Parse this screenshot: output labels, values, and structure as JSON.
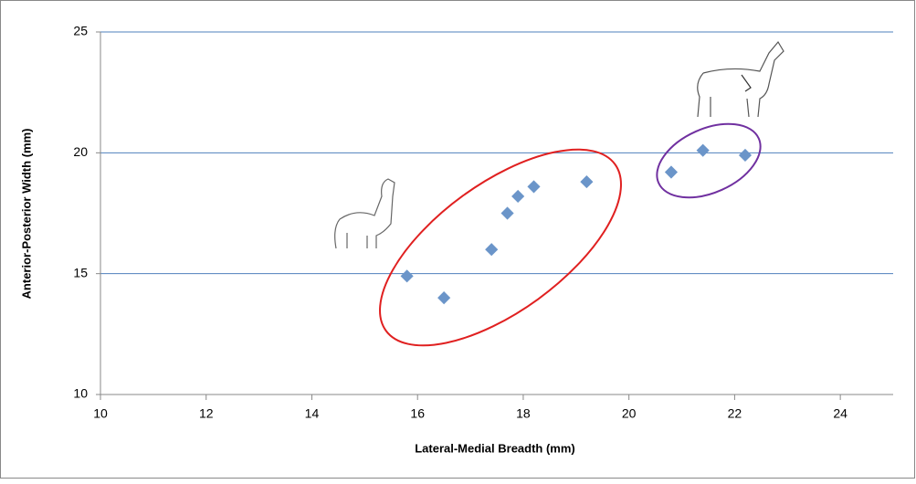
{
  "chart_data": {
    "type": "scatter",
    "xlabel": "Lateral-Medial Breadth (mm)",
    "ylabel": "Anterior-Posterior Width  (mm)",
    "x": [
      15.8,
      16.5,
      17.4,
      17.7,
      17.9,
      18.2,
      19.2,
      20.8,
      21.4,
      22.2
    ],
    "values": [
      14.9,
      14.0,
      16.0,
      17.5,
      18.2,
      18.6,
      18.8,
      19.2,
      20.1,
      19.9
    ],
    "color": "#6b95c9",
    "xlim": [
      10,
      25
    ],
    "xticks": [
      10,
      12,
      14,
      16,
      18,
      20,
      22,
      24
    ],
    "ylim": [
      10,
      25
    ],
    "yticks": [
      10,
      15,
      20,
      25
    ],
    "grid": true
  }
}
